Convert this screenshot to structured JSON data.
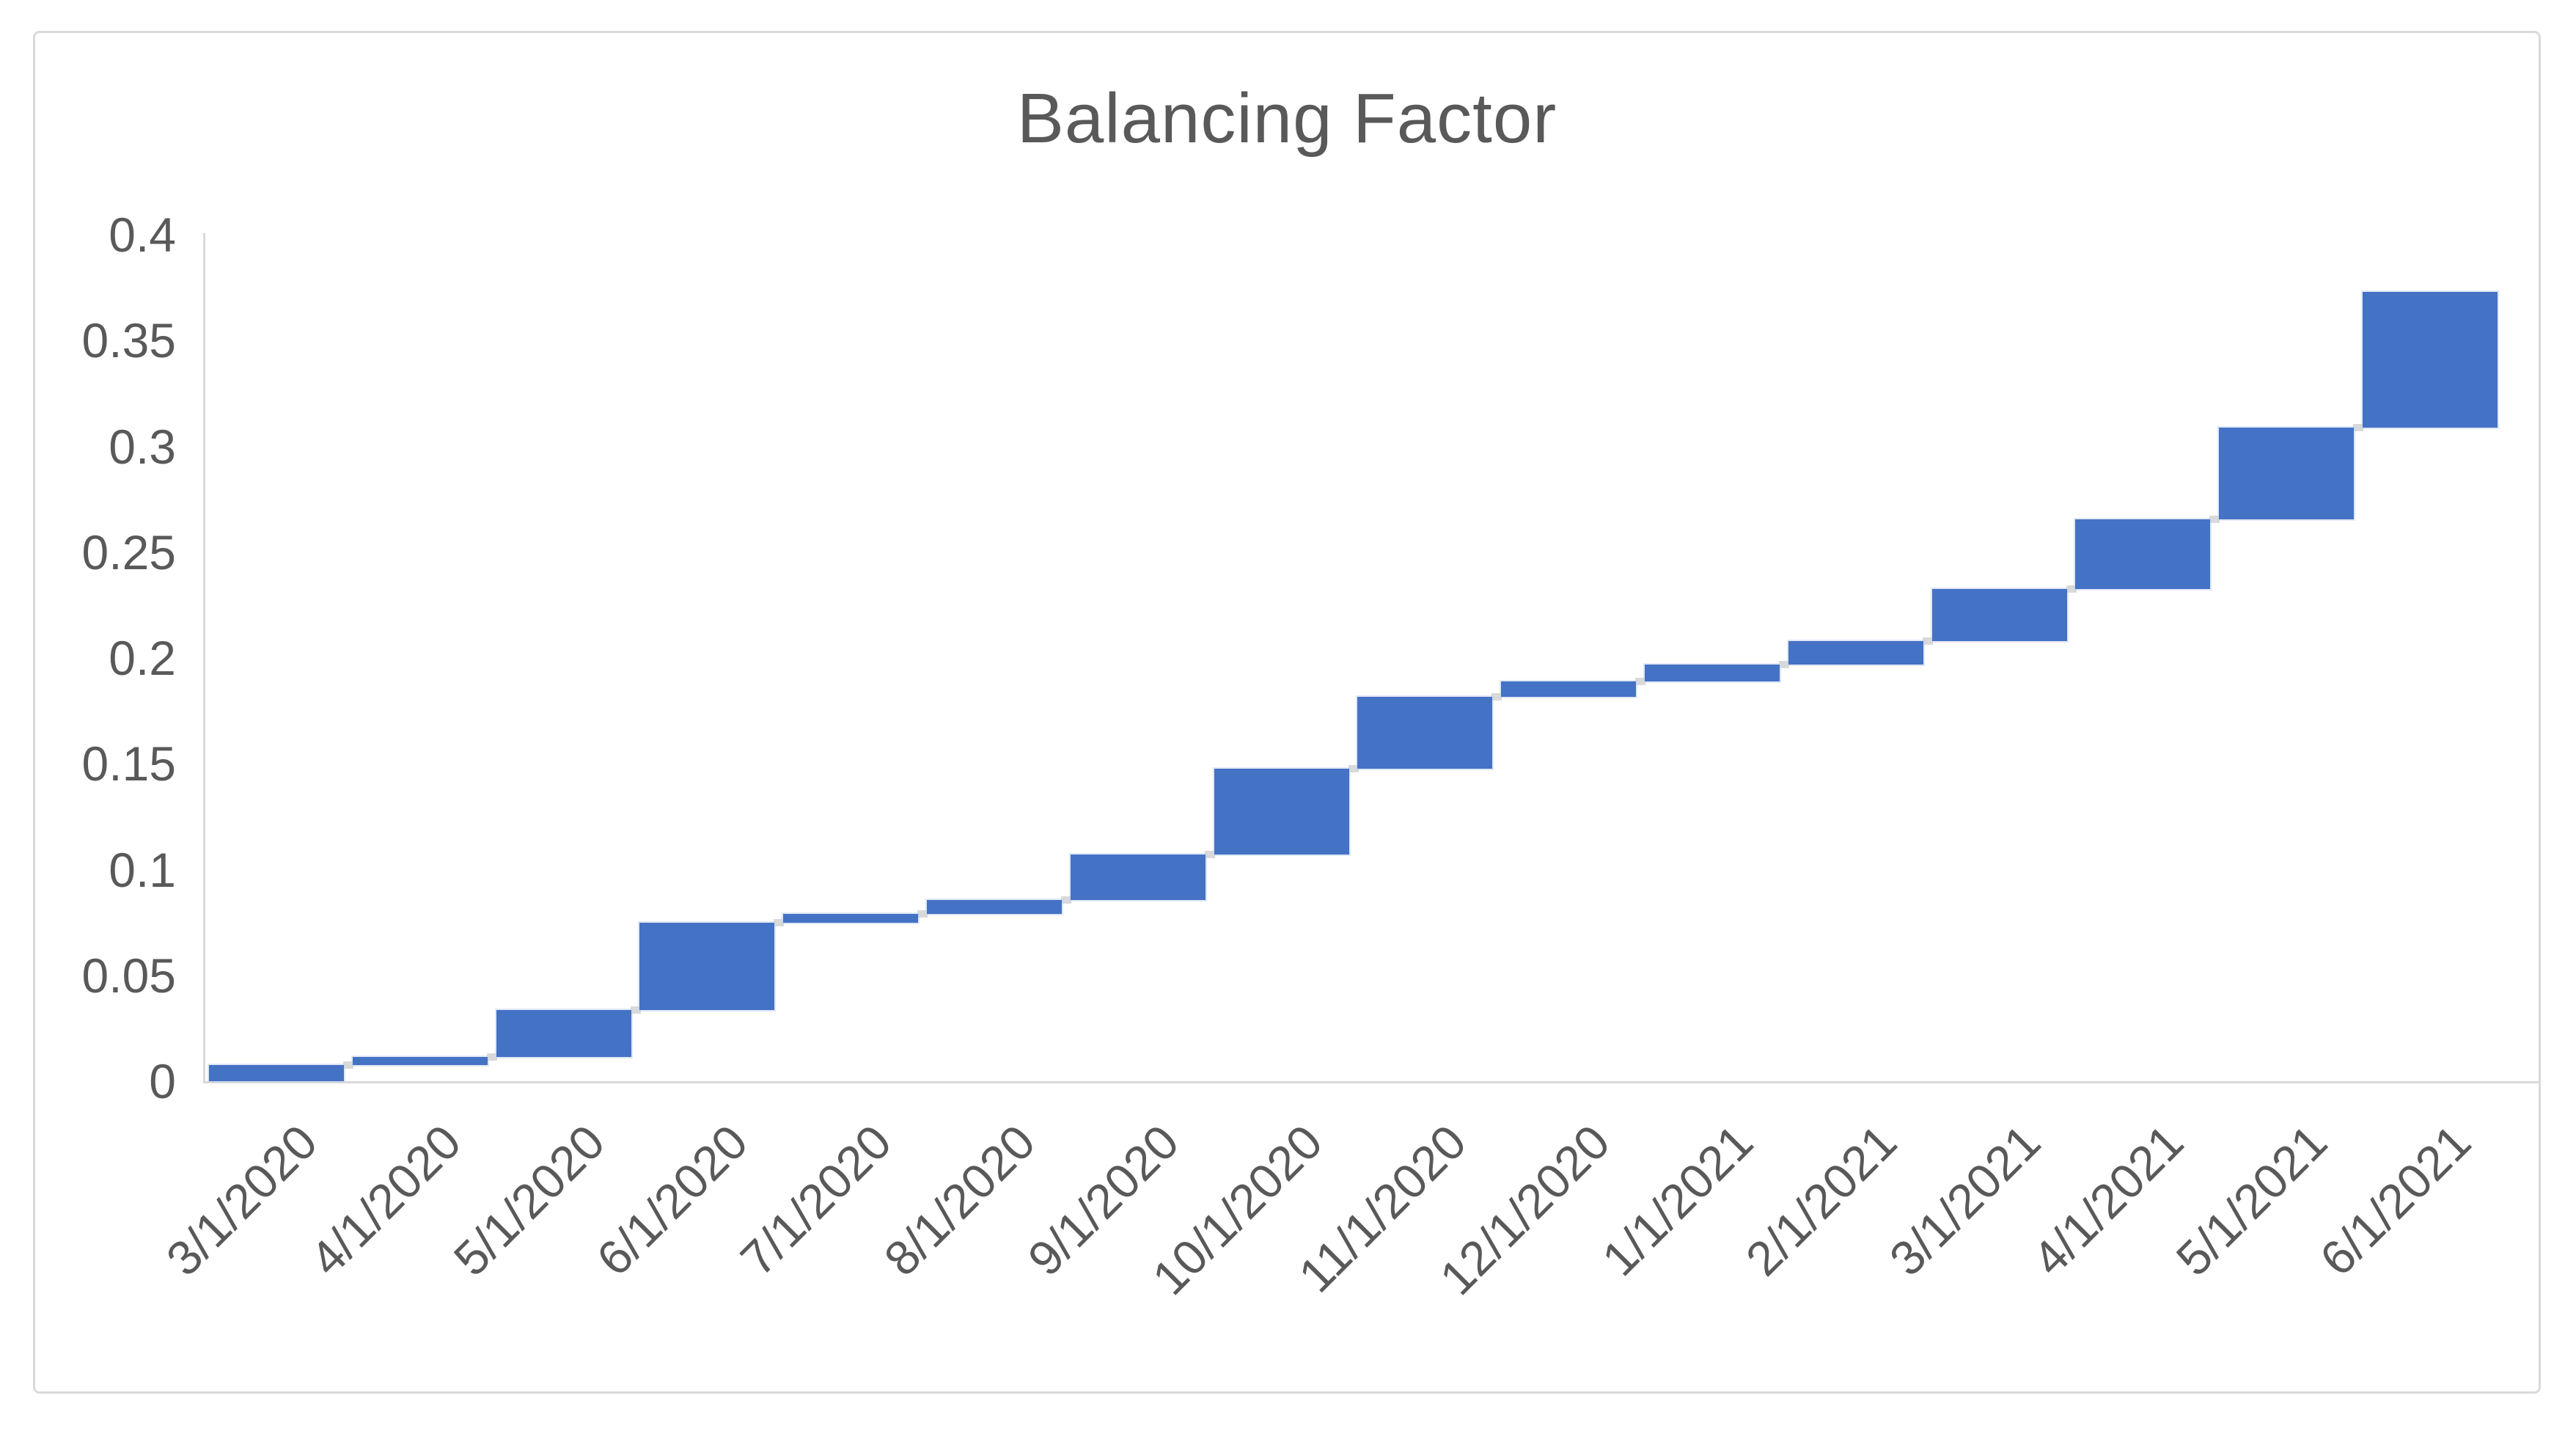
{
  "chart_data": {
    "type": "bar",
    "subtype": "floating-waterfall",
    "title": "Balancing Factor",
    "categories": [
      "3/1/2020",
      "4/1/2020",
      "5/1/2020",
      "6/1/2020",
      "7/1/2020",
      "8/1/2020",
      "9/1/2020",
      "10/1/2020",
      "11/1/2020",
      "12/1/2020",
      "1/1/2021",
      "2/1/2021",
      "3/1/2021",
      "4/1/2021",
      "5/1/2021",
      "6/1/2021"
    ],
    "series": [
      {
        "name": "Balancing Factor",
        "bar_start": [
          0,
          0.0076,
          0.0113,
          0.0335,
          0.0747,
          0.0789,
          0.0856,
          0.1072,
          0.1478,
          0.1817,
          0.1889,
          0.1969,
          0.208,
          0.2326,
          0.2655,
          0.3089
        ],
        "bar_end": [
          0.0076,
          0.0113,
          0.0335,
          0.0747,
          0.0789,
          0.0856,
          0.1072,
          0.1478,
          0.1817,
          0.1889,
          0.1969,
          0.208,
          0.2326,
          0.2655,
          0.3089,
          0.373
        ]
      }
    ],
    "xlabel": "",
    "ylabel": "",
    "ylim": [
      0,
      0.4
    ],
    "yticks": [
      0,
      0.05,
      0.1,
      0.15,
      0.2,
      0.25,
      0.3,
      0.35,
      0.4
    ],
    "ytick_labels": [
      "0",
      "0.05",
      "0.1",
      "0.15",
      "0.2",
      "0.25",
      "0.3",
      "0.35",
      "0.4"
    ],
    "x_label_rotation_deg": -45,
    "grid": "off",
    "legend": "none",
    "connector_markers": "small gray squares at each step junction"
  },
  "colors": {
    "bar": "#4472C4",
    "axis": "#D9D9D9",
    "connector": "#D9D9D9",
    "frame_border": "#D9D9D9",
    "text": "#595959",
    "background": "#FFFFFF"
  }
}
